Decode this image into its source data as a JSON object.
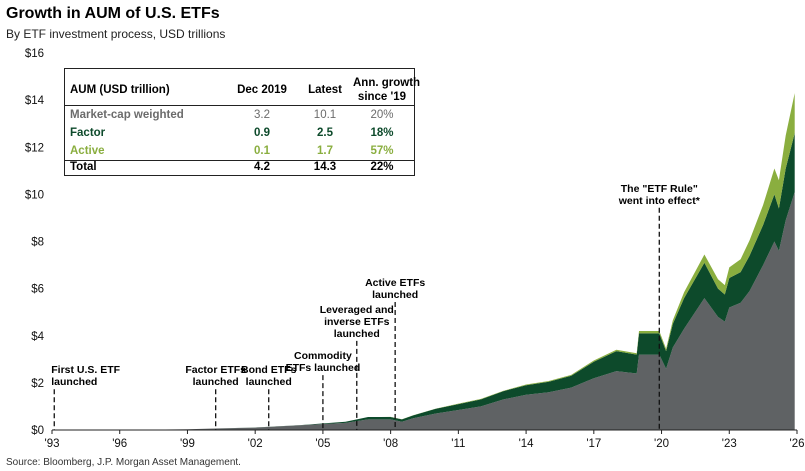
{
  "header": {
    "title": "Growth in AUM of U.S. ETFs",
    "subtitle": "By ETF investment process, USD trillions"
  },
  "source": "Source: Bloomberg, J.P. Morgan Asset Management.",
  "colors": {
    "market_cap": "#5f6264",
    "factor": "#0d4a2b",
    "active": "#8aae3f"
  },
  "table": {
    "headers": [
      "AUM (USD trillion)",
      "Dec 2019",
      "Latest",
      "Ann. growth",
      "since '19"
    ],
    "rows": [
      {
        "label": "Market-cap weighted",
        "dec2019": "3.2",
        "latest": "10.1",
        "growth": "20%",
        "color": "#6b6b6b"
      },
      {
        "label": "Factor",
        "dec2019": "0.9",
        "latest": "2.5",
        "growth": "18%",
        "color": "#0d4a2b"
      },
      {
        "label": "Active",
        "dec2019": "0.1",
        "latest": "1.7",
        "growth": "57%",
        "color": "#8aae3f"
      },
      {
        "label": "Total",
        "dec2019": "4.2",
        "latest": "14.3",
        "growth": "22%",
        "color": "#000000"
      }
    ]
  },
  "chart_data": {
    "type": "area",
    "stacked": true,
    "title": "Growth in AUM of U.S. ETFs",
    "subtitle": "By ETF investment process, USD trillions",
    "ylabel": "",
    "xlabel": "",
    "ylim": [
      0,
      16
    ],
    "xlim": [
      1993,
      2026
    ],
    "yticks": [
      "$0",
      "$2",
      "$4",
      "$6",
      "$8",
      "$10",
      "$12",
      "$14",
      "$16"
    ],
    "xticks": [
      "'93",
      "'96",
      "'99",
      "'02",
      "'05",
      "'08",
      "'11",
      "'14",
      "'17",
      "'20",
      "'23",
      "'26"
    ],
    "grid": false,
    "x": [
      1993,
      1995,
      1997,
      1999,
      2000,
      2002,
      2004,
      2006,
      2007,
      2008,
      2008.5,
      2009,
      2010,
      2011,
      2012,
      2013,
      2014,
      2015,
      2016,
      2017,
      2018,
      2018.9,
      2019,
      2019.9,
      2020.2,
      2020.5,
      2021,
      2021.9,
      2022.5,
      2022.8,
      2023,
      2023.5,
      2023.9,
      2024.5,
      2025,
      2025.2,
      2025.5,
      2025.9
    ],
    "series": [
      {
        "name": "Market-cap weighted",
        "values": [
          0,
          0,
          0.01,
          0.03,
          0.06,
          0.1,
          0.2,
          0.3,
          0.45,
          0.45,
          0.35,
          0.5,
          0.7,
          0.85,
          1.0,
          1.3,
          1.5,
          1.6,
          1.8,
          2.2,
          2.5,
          2.4,
          3.2,
          3.2,
          2.6,
          3.5,
          4.3,
          5.6,
          4.8,
          4.6,
          5.2,
          5.4,
          5.9,
          7.0,
          8.0,
          7.6,
          8.9,
          10.1
        ]
      },
      {
        "name": "Factor",
        "values": [
          0,
          0,
          0,
          0,
          0.001,
          0.005,
          0.01,
          0.05,
          0.1,
          0.1,
          0.1,
          0.12,
          0.2,
          0.25,
          0.3,
          0.35,
          0.4,
          0.45,
          0.5,
          0.7,
          0.85,
          0.8,
          0.9,
          0.9,
          0.75,
          1.0,
          1.3,
          1.5,
          1.2,
          1.15,
          1.25,
          1.3,
          1.5,
          1.7,
          2.0,
          1.8,
          2.2,
          2.5
        ]
      },
      {
        "name": "Active",
        "values": [
          0,
          0,
          0,
          0,
          0,
          0,
          0,
          0,
          0,
          0.005,
          0.005,
          0.01,
          0.01,
          0.02,
          0.02,
          0.02,
          0.03,
          0.03,
          0.04,
          0.05,
          0.06,
          0.06,
          0.1,
          0.1,
          0.1,
          0.15,
          0.25,
          0.35,
          0.4,
          0.4,
          0.45,
          0.55,
          0.65,
          0.85,
          1.1,
          1.2,
          1.4,
          1.7
        ]
      }
    ],
    "annotations": [
      {
        "year": 1993.1,
        "lines": [
          "First U.S. ETF",
          "launched"
        ],
        "label_y": 1.9,
        "anchor": "start"
      },
      {
        "year": 2000.25,
        "lines": [
          "Factor ETFs",
          "launched"
        ],
        "label_y": 1.9,
        "anchor": "middle"
      },
      {
        "year": 2002.6,
        "lines": [
          "Bond ETFs",
          "launched"
        ],
        "label_y": 1.9,
        "anchor": "middle"
      },
      {
        "year": 2005.0,
        "lines": [
          "Commodity",
          "ETFs launched"
        ],
        "label_y": 2.5,
        "anchor": "middle"
      },
      {
        "year": 2006.5,
        "lines": [
          "Leveraged and",
          "inverse ETFs",
          "launched"
        ],
        "label_y": 3.95,
        "anchor": "middle"
      },
      {
        "year": 2008.2,
        "lines": [
          "Active ETFs",
          "launched"
        ],
        "label_y": 5.6,
        "anchor": "middle"
      },
      {
        "year": 2019.9,
        "lines": [
          "The \"ETF Rule\"",
          "went into effect*"
        ],
        "label_y": 9.6,
        "anchor": "middle"
      }
    ]
  }
}
